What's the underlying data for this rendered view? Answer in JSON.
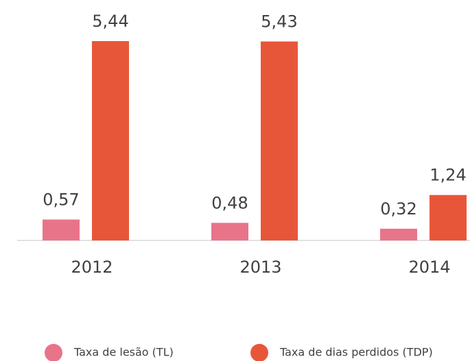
{
  "chart_data": {
    "type": "bar",
    "categories": [
      "2012",
      "2013",
      "2014"
    ],
    "series": [
      {
        "name": "Taxa de lesão (TL)",
        "color": "#e8748a",
        "values": [
          0.57,
          0.48,
          0.32
        ],
        "value_labels": [
          "0,57",
          "0,48",
          "0,32"
        ]
      },
      {
        "name": "Taxa de dias perdidos (TDP)",
        "color": "#e8563a",
        "values": [
          5.44,
          5.43,
          1.24
        ],
        "value_labels": [
          "5,44",
          "5,43",
          "1,24"
        ]
      }
    ],
    "legend": "bottom"
  }
}
